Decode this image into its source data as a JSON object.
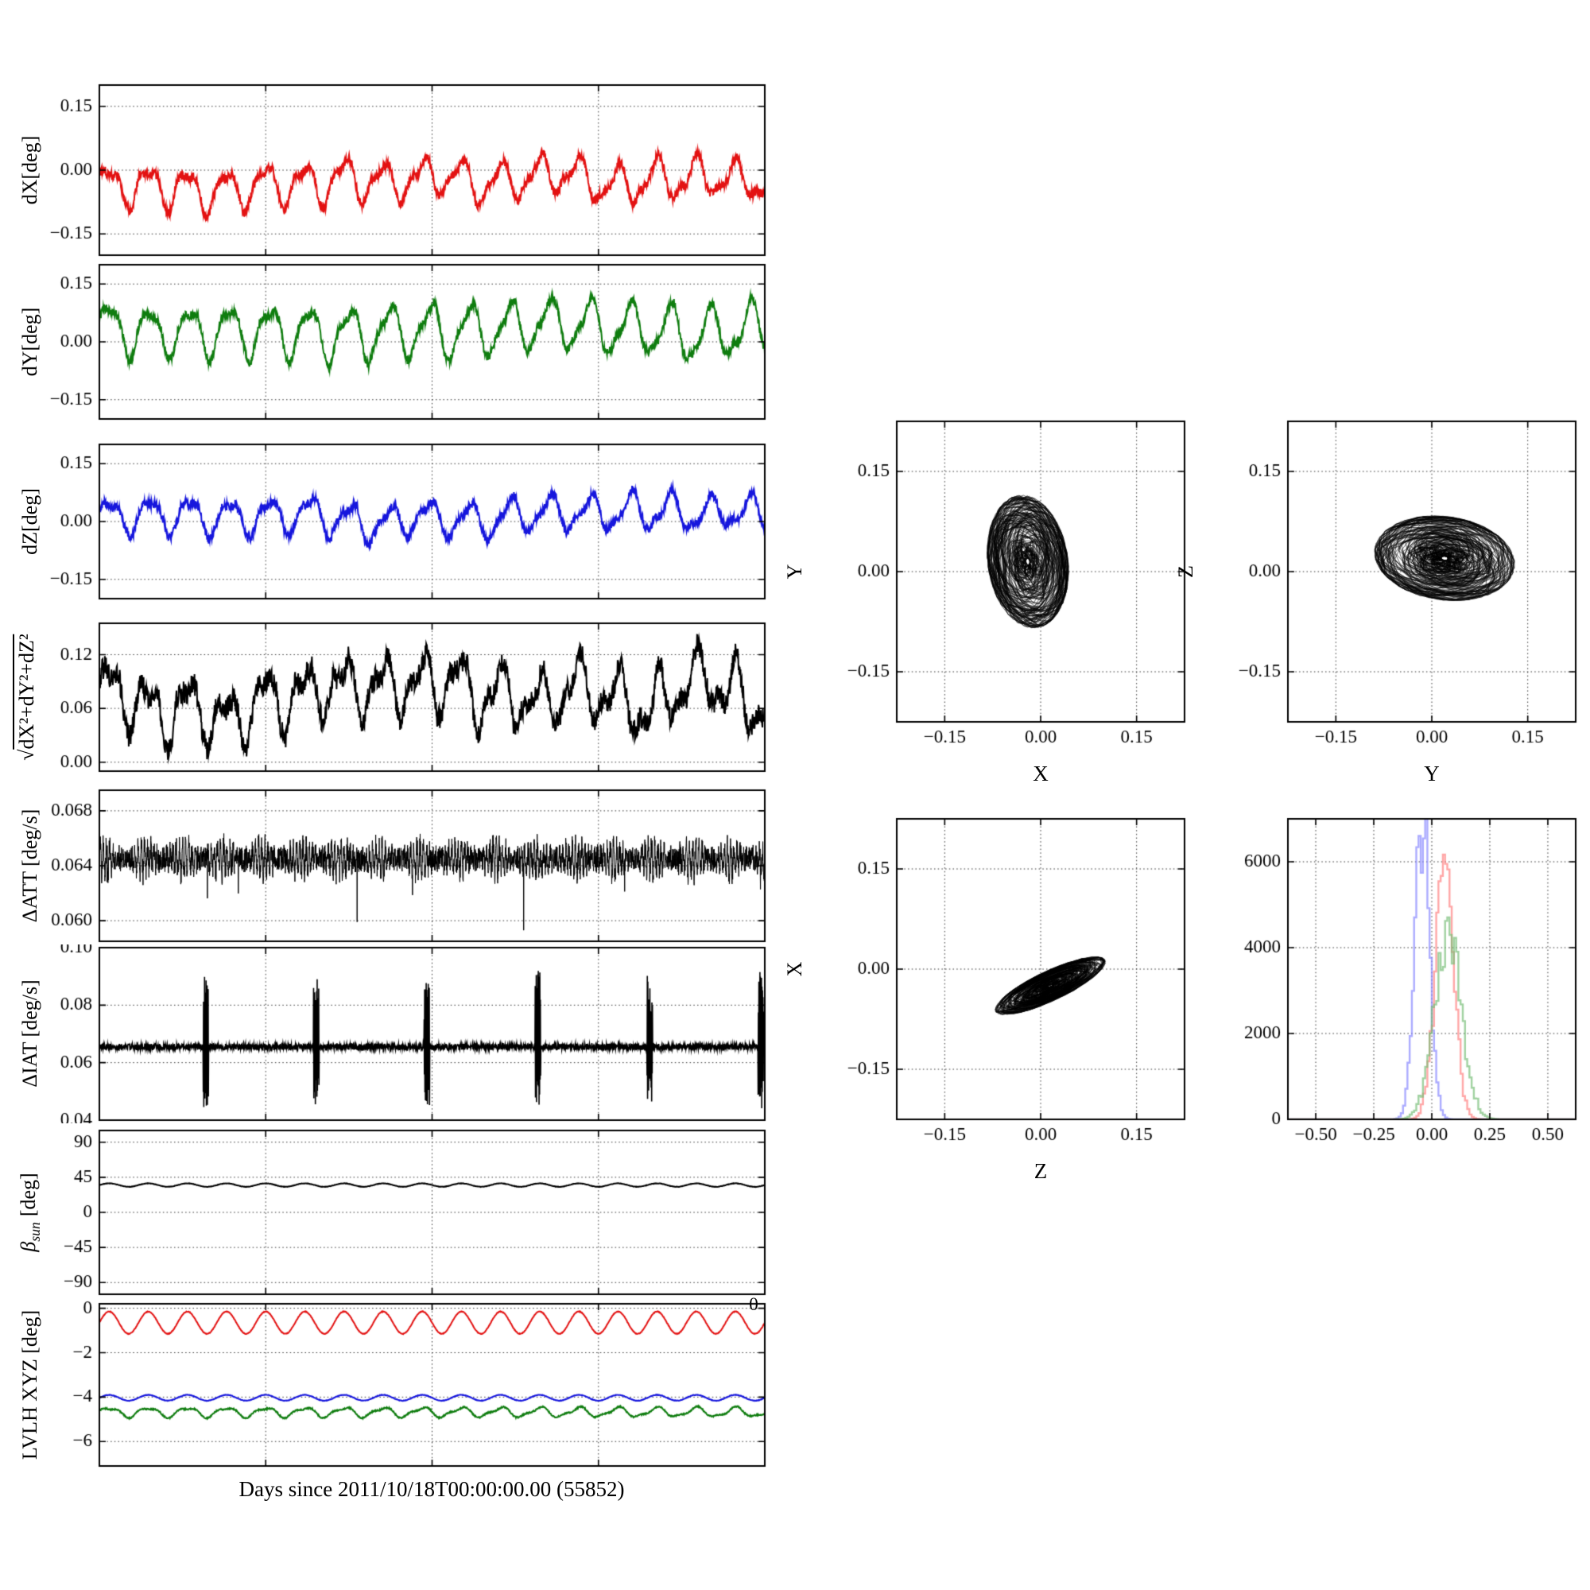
{
  "figure": {
    "xlabel": "Days since 2011/10/18T00:00:00.00 (55852)",
    "stray_zero": "0",
    "background": "#ffffff",
    "grid": "dotted"
  },
  "chart_data": [
    {
      "type": "line",
      "ylabel": "dX[deg]",
      "ylim": [
        -0.2,
        0.2
      ],
      "yticks": [
        0.15,
        0,
        -0.15
      ],
      "ytick_labels": [
        "0.15",
        "0.00",
        "−0.15"
      ],
      "approx_range": [
        -0.12,
        0.06
      ],
      "series": [
        {
          "name": "dX",
          "kind": "osc",
          "color": "#e31212",
          "mean": -0.027,
          "amp": 0.042,
          "amp2": 0.016,
          "cycles": 17,
          "noise": 0.011,
          "walk": 0.004,
          "seed": 101,
          "lw": 2,
          "n": 1700
        }
      ]
    },
    {
      "type": "line",
      "ylabel": "dY[deg]",
      "ylim": [
        -0.2,
        0.2
      ],
      "yticks": [
        0.15,
        0,
        -0.15
      ],
      "ytick_labels": [
        "0.15",
        "0.00",
        "−0.15"
      ],
      "approx_range": [
        -0.06,
        0.14
      ],
      "series": [
        {
          "name": "dY",
          "kind": "osc",
          "color": "#0f7d0f",
          "mean": 0.032,
          "amp": 0.062,
          "amp2": 0.018,
          "cycles": 16.6,
          "noise": 0.011,
          "walk": 0.004,
          "seed": 102,
          "lw": 2,
          "n": 1700
        }
      ]
    },
    {
      "type": "line",
      "ylabel": "dZ[deg]",
      "ylim": [
        -0.2,
        0.2
      ],
      "yticks": [
        0.15,
        0,
        -0.15
      ],
      "ytick_labels": [
        "0.15",
        "0.00",
        "−0.15"
      ],
      "approx_range": [
        -0.06,
        0.11
      ],
      "series": [
        {
          "name": "dZ",
          "kind": "osc",
          "color": "#1616dd",
          "mean": 0.02,
          "amp": 0.042,
          "amp2": 0.014,
          "cycles": 16.6,
          "noise": 0.011,
          "walk": 0.004,
          "seed": 103,
          "lw": 2,
          "n": 1700
        }
      ]
    },
    {
      "type": "line",
      "ylabel_radical": "√",
      "ylabel_radicand": "dX²+dY²+dZ²",
      "ylim": [
        -0.01,
        0.155
      ],
      "yticks": [
        0.12,
        0.06,
        0
      ],
      "ytick_labels": [
        "0.12",
        "0.06",
        "0.00"
      ],
      "approx_range": [
        0.01,
        0.145
      ],
      "series": [
        {
          "name": "total-error",
          "kind": "osc",
          "color": "#000000",
          "mean": 0.072,
          "amp": 0.028,
          "amp2": 0.015,
          "cycles": 17,
          "noise": 0.012,
          "walk": 0.005,
          "seed": 104,
          "lw": 2,
          "n": 1700
        }
      ]
    },
    {
      "type": "line",
      "ylabel": "ΔATT [deg/s]",
      "ylim": [
        0.0585,
        0.0695
      ],
      "yticks": [
        0.068,
        0.064,
        0.06
      ],
      "ytick_labels": [
        "0.068",
        "0.064",
        "0.060"
      ],
      "approx_range": [
        0.06,
        0.0685
      ],
      "series": [
        {
          "name": "delta-att",
          "kind": "band",
          "color": "#000000",
          "mean": 0.0645,
          "amp": 0.0011,
          "cycles": 210,
          "noise": 0.0009,
          "spike": 0.0045,
          "spike_p": 0.004,
          "seed": 105,
          "lw": 1,
          "n": 3400
        }
      ]
    },
    {
      "type": "line",
      "ylabel": "ΔIAT [deg/s]",
      "ylim": [
        0.04,
        0.1
      ],
      "yticks": [
        0.1,
        0.08,
        0.06,
        0.04
      ],
      "ytick_labels": [
        "0.10",
        "0.08",
        "0.06",
        "0.04"
      ],
      "approx_range": [
        0.043,
        0.093
      ],
      "series": [
        {
          "name": "delta-iat",
          "kind": "spiky",
          "color": "#000000",
          "mean": 0.0655,
          "noise": 0.0011,
          "up": 0.0265,
          "down": 0.0215,
          "spikes": [
            0.16,
            0.326,
            0.492,
            0.659,
            0.827,
            0.994
          ],
          "seed": 106,
          "lw": 1.6,
          "n": 2600
        }
      ]
    },
    {
      "type": "line",
      "ylabel_sym": "β",
      "ylabel_sub": "sun",
      "ylabel_unit": "[deg]",
      "ylim": [
        -105,
        105
      ],
      "yticks": [
        90,
        45,
        0,
        -45,
        -90
      ],
      "ytick_labels": [
        "90",
        "45",
        "0",
        "−45",
        "−90"
      ],
      "approx_range": [
        33,
        37
      ],
      "series": [
        {
          "name": "beta-sun",
          "kind": "flat",
          "color": "#000000",
          "mean": 35,
          "amp": 2.2,
          "cycles": 17,
          "noise": 0.25,
          "seed": 107,
          "lw": 2,
          "n": 1500
        }
      ]
    },
    {
      "type": "line",
      "ylabel": "LVLH XYZ [deg]",
      "ylim": [
        -7.1,
        0.2
      ],
      "yticks": [
        0,
        -2,
        -4,
        -6
      ],
      "ytick_labels": [
        "0",
        "−2",
        "−4",
        "−6"
      ],
      "series": [
        {
          "name": "lvlh-x",
          "kind": "flat",
          "color": "#e31212",
          "mean": -0.65,
          "amp": 0.5,
          "cycles": 17,
          "noise": 0.015,
          "seed": 108,
          "lw": 2,
          "n": 1500
        },
        {
          "name": "lvlh-y",
          "kind": "flat",
          "color": "#1616dd",
          "mean": -4.03,
          "amp": 0.13,
          "cycles": 17,
          "noise": 0.012,
          "seed": 109,
          "lw": 2,
          "n": 1500
        },
        {
          "name": "lvlh-z",
          "kind": "flat",
          "color": "#0f7d0f",
          "mean": -4.68,
          "amp": 0.2,
          "amp2": 0.07,
          "cycles": 17,
          "noise": 0.03,
          "seed": 110,
          "lw": 2,
          "n": 1500
        }
      ]
    },
    {
      "type": "scatter",
      "xlabel": "X",
      "ylabel": "Y",
      "xlim": [
        -0.225,
        0.225
      ],
      "ylim": [
        -0.225,
        0.225
      ],
      "xticks": [
        -0.15,
        0,
        0.15
      ],
      "xtick_labels": [
        "−0.15",
        "0.00",
        "0.15"
      ],
      "yticks": [
        0.15,
        0,
        -0.15
      ],
      "ytick_labels": [
        "0.15",
        "0.00",
        "−0.15"
      ],
      "series": [
        {
          "name": "Y-vs-X",
          "kind": "orbit",
          "color": "#000000",
          "cx": -0.02,
          "cy": 0.015,
          "sx": 0.05,
          "sy": 0.08,
          "rot": 0.15,
          "n": 2300,
          "seed": 111
        }
      ]
    },
    {
      "type": "scatter",
      "xlabel": "Y",
      "ylabel": "Z",
      "xlim": [
        -0.225,
        0.225
      ],
      "ylim": [
        -0.225,
        0.225
      ],
      "xticks": [
        -0.15,
        0,
        0.15
      ],
      "xtick_labels": [
        "−0.15",
        "0.00",
        "0.15"
      ],
      "yticks": [
        0.15,
        0,
        -0.15
      ],
      "ytick_labels": [
        "0.15",
        "0.00",
        "−0.15"
      ],
      "series": [
        {
          "name": "Z-vs-Y",
          "kind": "orbit",
          "color": "#000000",
          "cx": 0.02,
          "cy": 0.02,
          "sx": 0.088,
          "sy": 0.05,
          "rot": -0.12,
          "n": 2500,
          "seed": 112
        }
      ]
    },
    {
      "type": "scatter",
      "xlabel": "Z",
      "ylabel": "X",
      "xlim": [
        -0.225,
        0.225
      ],
      "ylim": [
        -0.225,
        0.225
      ],
      "xticks": [
        -0.15,
        0,
        0.15
      ],
      "xtick_labels": [
        "−0.15",
        "0.00",
        "0.15"
      ],
      "yticks": [
        0.15,
        0,
        -0.15
      ],
      "ytick_labels": [
        "0.15",
        "0.00",
        "−0.15"
      ],
      "series": [
        {
          "name": "X-vs-Z",
          "kind": "orbit",
          "color": "#000000",
          "cx": 0.015,
          "cy": -0.025,
          "sx": 0.075,
          "sy": 0.018,
          "rot": 0.42,
          "n": 2300,
          "seed": 113
        }
      ]
    },
    {
      "type": "hist",
      "xlim": [
        -0.62,
        0.62
      ],
      "ylim": [
        0,
        7000
      ],
      "xticks": [
        -0.5,
        -0.25,
        0,
        0.25,
        0.5
      ],
      "xtick_labels": [
        "−0.50",
        "−0.25",
        "0.00",
        "0.25",
        "0.50"
      ],
      "yticks": [
        0,
        2000,
        4000,
        6000
      ],
      "ytick_labels": [
        "0",
        "2000",
        "4000",
        "6000"
      ],
      "series": [
        {
          "name": "hist-blue",
          "kind": "hist",
          "color": "#8585ff",
          "center": -0.045,
          "sigma": 0.032,
          "peak": 6750,
          "seed": 114
        },
        {
          "name": "hist-red",
          "kind": "hist",
          "color": "#ff7d7d",
          "center": 0.05,
          "sigma": 0.04,
          "peak": 5800,
          "seed": 115
        },
        {
          "name": "hist-green",
          "kind": "hist",
          "color": "#74bc74",
          "center": 0.065,
          "sigma": 0.058,
          "peak": 4300,
          "seed": 116
        }
      ]
    }
  ]
}
